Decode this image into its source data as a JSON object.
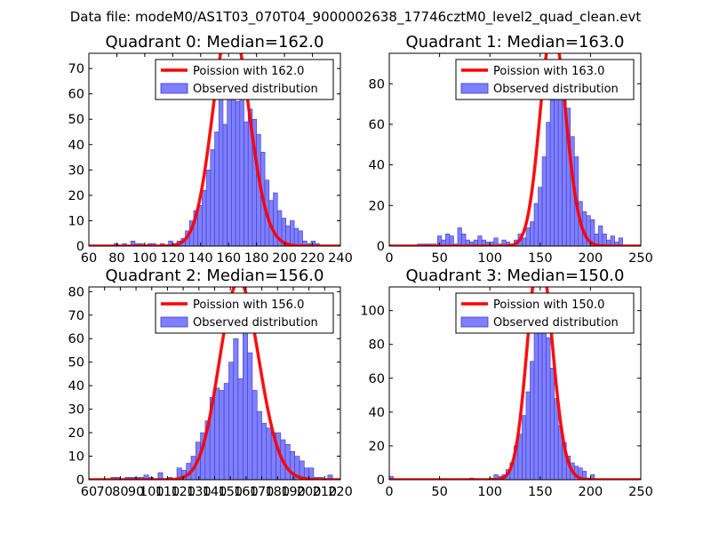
{
  "figure": {
    "suptitle": "Data file: modeM0/AS1T03_070T04_9000002638_17746cztM0_level2_quad_clean.evt",
    "bar_color": "#7f7fff",
    "curve_color": "#ff0000"
  },
  "chart_data": [
    {
      "type": "bar",
      "title": "Quadrant 0: Median=162.0",
      "median": 162.0,
      "xlim": [
        60,
        240
      ],
      "ylim": [
        0,
        76
      ],
      "xticks": [
        60,
        80,
        100,
        120,
        140,
        160,
        180,
        200,
        220,
        240
      ],
      "xtick_labels": [
        "60",
        "80",
        "100",
        "120",
        "140",
        "160",
        "180",
        "200",
        "220",
        "240"
      ],
      "yticks": [
        0,
        10,
        20,
        30,
        40,
        50,
        60,
        70
      ],
      "ytick_labels": [
        "0",
        "10",
        "20",
        "30",
        "40",
        "50",
        "60",
        "70"
      ],
      "legend": [
        "Poission with 162.0",
        "Observed distribution"
      ],
      "bin_width": 3,
      "bins": [
        [
          78,
          1
        ],
        [
          84,
          1
        ],
        [
          90,
          2
        ],
        [
          93,
          1
        ],
        [
          96,
          1
        ],
        [
          102,
          1
        ],
        [
          105,
          1
        ],
        [
          111,
          1
        ],
        [
          117,
          2
        ],
        [
          120,
          1
        ],
        [
          123,
          2
        ],
        [
          126,
          3
        ],
        [
          129,
          6
        ],
        [
          132,
          10
        ],
        [
          135,
          14
        ],
        [
          138,
          16
        ],
        [
          141,
          22
        ],
        [
          144,
          30
        ],
        [
          147,
          38
        ],
        [
          150,
          45
        ],
        [
          153,
          60
        ],
        [
          156,
          48
        ],
        [
          159,
          59
        ],
        [
          162,
          70
        ],
        [
          165,
          57
        ],
        [
          168,
          66
        ],
        [
          171,
          49
        ],
        [
          174,
          54
        ],
        [
          177,
          50
        ],
        [
          180,
          44
        ],
        [
          183,
          37
        ],
        [
          186,
          26
        ],
        [
          189,
          18
        ],
        [
          192,
          21
        ],
        [
          195,
          14
        ],
        [
          198,
          11
        ],
        [
          201,
          8
        ],
        [
          204,
          10
        ],
        [
          207,
          7
        ],
        [
          210,
          6
        ],
        [
          213,
          2
        ],
        [
          216,
          1
        ],
        [
          219,
          2
        ],
        [
          222,
          1
        ]
      ]
    },
    {
      "type": "bar",
      "title": "Quadrant 1: Median=163.0",
      "median": 163.0,
      "xlim": [
        0,
        250
      ],
      "ylim": [
        0,
        95
      ],
      "xticks": [
        0,
        50,
        100,
        150,
        200,
        250
      ],
      "xtick_labels": [
        "0",
        "50",
        "100",
        "150",
        "200",
        "250"
      ],
      "yticks": [
        0,
        20,
        40,
        60,
        80
      ],
      "ytick_labels": [
        "0",
        "20",
        "40",
        "60",
        "80"
      ],
      "legend": [
        "Poission with 163.0",
        "Observed distribution"
      ],
      "bin_width": 4,
      "bins": [
        [
          28,
          1
        ],
        [
          32,
          1
        ],
        [
          36,
          1
        ],
        [
          40,
          1
        ],
        [
          44,
          1
        ],
        [
          48,
          5
        ],
        [
          52,
          3
        ],
        [
          56,
          6
        ],
        [
          60,
          5
        ],
        [
          64,
          1
        ],
        [
          68,
          9
        ],
        [
          72,
          6
        ],
        [
          76,
          3
        ],
        [
          80,
          2
        ],
        [
          84,
          3
        ],
        [
          88,
          5
        ],
        [
          92,
          3
        ],
        [
          96,
          2
        ],
        [
          100,
          2
        ],
        [
          104,
          4
        ],
        [
          108,
          1
        ],
        [
          112,
          3
        ],
        [
          116,
          2
        ],
        [
          120,
          1
        ],
        [
          124,
          3
        ],
        [
          128,
          6
        ],
        [
          132,
          4
        ],
        [
          136,
          9
        ],
        [
          140,
          12
        ],
        [
          144,
          21
        ],
        [
          148,
          29
        ],
        [
          152,
          44
        ],
        [
          156,
          61
        ],
        [
          160,
          72
        ],
        [
          164,
          84
        ],
        [
          168,
          78
        ],
        [
          172,
          73
        ],
        [
          176,
          68
        ],
        [
          180,
          54
        ],
        [
          184,
          44
        ],
        [
          188,
          22
        ],
        [
          192,
          17
        ],
        [
          196,
          15
        ],
        [
          200,
          13
        ],
        [
          204,
          6
        ],
        [
          208,
          10
        ],
        [
          212,
          6
        ],
        [
          216,
          3
        ],
        [
          220,
          5
        ],
        [
          224,
          2
        ],
        [
          228,
          4
        ]
      ]
    },
    {
      "type": "bar",
      "title": "Quadrant 2: Median=156.0",
      "median": 156.0,
      "xlim": [
        60,
        220
      ],
      "ylim": [
        0,
        82
      ],
      "xticks": [
        60,
        70,
        80,
        90,
        100,
        110,
        120,
        130,
        140,
        150,
        160,
        170,
        180,
        190,
        200,
        210,
        220
      ],
      "xtick_labels": [
        "60",
        "70",
        "80",
        "90",
        "100",
        "110",
        "120",
        "130",
        "140",
        "150",
        "160",
        "170",
        "180",
        "190",
        "200",
        "210",
        "220"
      ],
      "yticks": [
        0,
        10,
        20,
        30,
        40,
        50,
        60,
        70,
        80
      ],
      "ytick_labels": [
        "0",
        "10",
        "20",
        "30",
        "40",
        "50",
        "60",
        "70",
        "80"
      ],
      "legend": [
        "Poission with 156.0",
        "Observed distribution"
      ],
      "bin_width": 3,
      "bins": [
        [
          74,
          1
        ],
        [
          77,
          1
        ],
        [
          83,
          1
        ],
        [
          86,
          1
        ],
        [
          89,
          1
        ],
        [
          92,
          1
        ],
        [
          95,
          2
        ],
        [
          98,
          1
        ],
        [
          104,
          3
        ],
        [
          110,
          1
        ],
        [
          116,
          5
        ],
        [
          119,
          4
        ],
        [
          122,
          7
        ],
        [
          125,
          10
        ],
        [
          128,
          16
        ],
        [
          131,
          20
        ],
        [
          134,
          25
        ],
        [
          137,
          35
        ],
        [
          140,
          39
        ],
        [
          143,
          38
        ],
        [
          146,
          41
        ],
        [
          149,
          50
        ],
        [
          152,
          60
        ],
        [
          155,
          43
        ],
        [
          158,
          66
        ],
        [
          161,
          54
        ],
        [
          164,
          38
        ],
        [
          167,
          29
        ],
        [
          170,
          24
        ],
        [
          173,
          22
        ],
        [
          176,
          20
        ],
        [
          179,
          20
        ],
        [
          182,
          17
        ],
        [
          185,
          15
        ],
        [
          188,
          12
        ],
        [
          191,
          10
        ],
        [
          194,
          8
        ],
        [
          197,
          5
        ],
        [
          200,
          5
        ],
        [
          203,
          1
        ],
        [
          206,
          1
        ],
        [
          212,
          2
        ]
      ]
    },
    {
      "type": "bar",
      "title": "Quadrant 3: Median=150.0",
      "median": 150.0,
      "xlim": [
        0,
        250
      ],
      "ylim": [
        0,
        114
      ],
      "xticks": [
        0,
        50,
        100,
        150,
        200,
        250
      ],
      "xtick_labels": [
        "0",
        "50",
        "100",
        "150",
        "200",
        "250"
      ],
      "yticks": [
        0,
        20,
        40,
        60,
        80,
        100
      ],
      "ytick_labels": [
        "0",
        "20",
        "40",
        "60",
        "80",
        "100"
      ],
      "legend": [
        "Poission with 150.0",
        "Observed distribution"
      ],
      "bin_width": 4,
      "bins": [
        [
          0,
          2
        ],
        [
          80,
          1
        ],
        [
          100,
          1
        ],
        [
          104,
          3
        ],
        [
          108,
          2
        ],
        [
          112,
          3
        ],
        [
          116,
          6
        ],
        [
          120,
          10
        ],
        [
          124,
          20
        ],
        [
          128,
          27
        ],
        [
          132,
          38
        ],
        [
          136,
          52
        ],
        [
          140,
          70
        ],
        [
          144,
          93
        ],
        [
          148,
          100
        ],
        [
          152,
          105
        ],
        [
          156,
          84
        ],
        [
          160,
          66
        ],
        [
          164,
          48
        ],
        [
          168,
          32
        ],
        [
          172,
          22
        ],
        [
          176,
          14
        ],
        [
          180,
          10
        ],
        [
          184,
          8
        ],
        [
          188,
          7
        ],
        [
          192,
          5
        ],
        [
          196,
          1
        ],
        [
          200,
          3
        ]
      ]
    }
  ]
}
